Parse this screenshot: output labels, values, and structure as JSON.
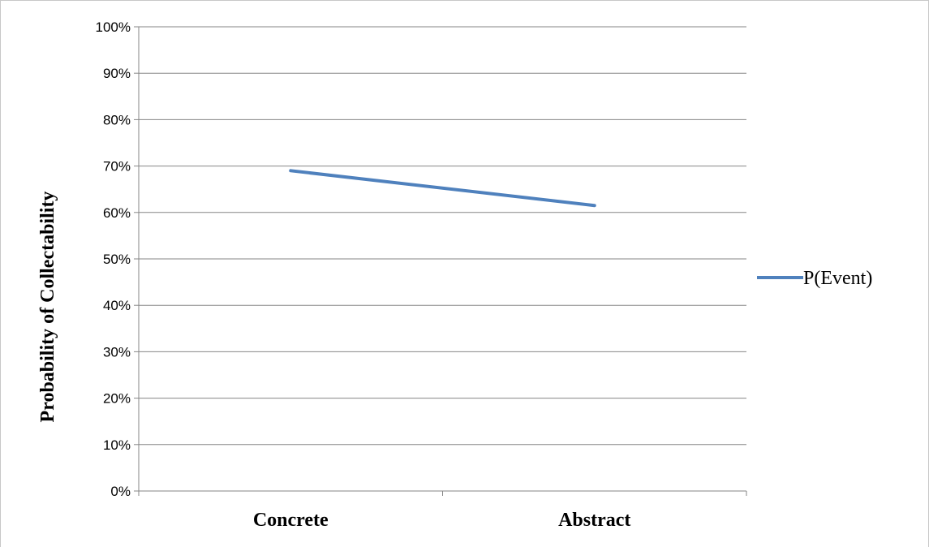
{
  "chart_data": {
    "type": "line",
    "categories": [
      "Concrete",
      "Abstract"
    ],
    "series": [
      {
        "name": "P(Event)",
        "values": [
          69,
          61.5
        ]
      }
    ],
    "title": "",
    "xlabel": "",
    "ylabel": "Probability of Collectability",
    "ylim": [
      0,
      100
    ],
    "yticks": [
      "0%",
      "10%",
      "20%",
      "30%",
      "40%",
      "50%",
      "60%",
      "70%",
      "80%",
      "90%",
      "100%"
    ],
    "grid": true,
    "legend": "right",
    "colors": {
      "series": "#4f81bd",
      "grid": "#868686",
      "axis": "#868686"
    }
  }
}
